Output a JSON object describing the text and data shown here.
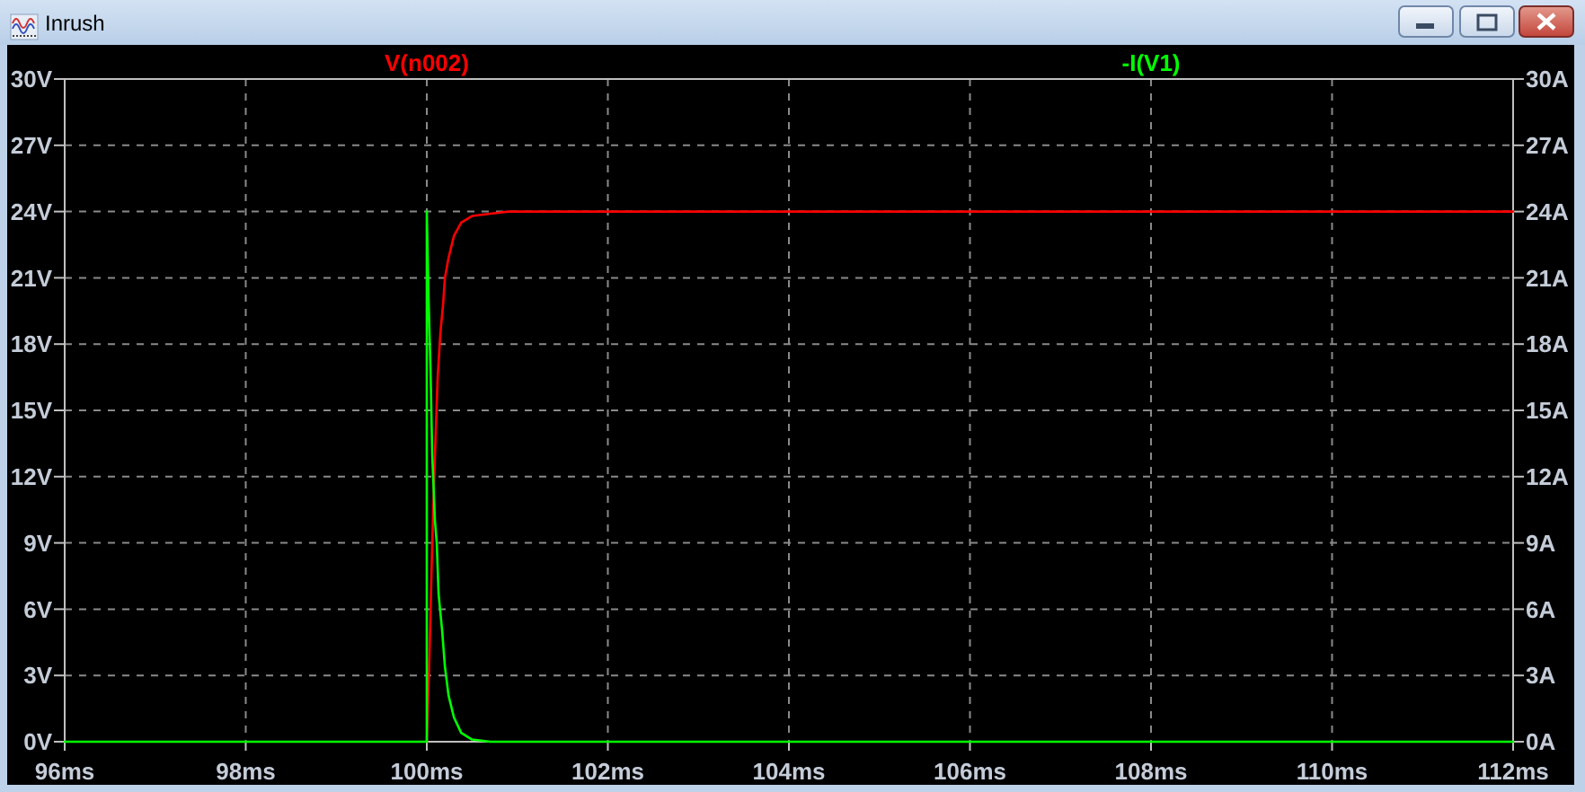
{
  "chart_data": {
    "type": "line",
    "title": "Inrush",
    "xlim": [
      96,
      112
    ],
    "xticks": [
      {
        "value": 96,
        "label": "96ms"
      },
      {
        "value": 98,
        "label": "98ms"
      },
      {
        "value": 100,
        "label": "100ms"
      },
      {
        "value": 102,
        "label": "102ms"
      },
      {
        "value": 104,
        "label": "104ms"
      },
      {
        "value": 106,
        "label": "106ms"
      },
      {
        "value": 108,
        "label": "108ms"
      },
      {
        "value": 110,
        "label": "110ms"
      },
      {
        "value": 112,
        "label": "112ms"
      }
    ],
    "ylim": [
      0,
      30
    ],
    "yticks": [
      {
        "value": 0,
        "label": "0V"
      },
      {
        "value": 3,
        "label": "3V"
      },
      {
        "value": 6,
        "label": "6V"
      },
      {
        "value": 9,
        "label": "9V"
      },
      {
        "value": 12,
        "label": "12V"
      },
      {
        "value": 15,
        "label": "15V"
      },
      {
        "value": 18,
        "label": "18V"
      },
      {
        "value": 21,
        "label": "21V"
      },
      {
        "value": 24,
        "label": "24V"
      },
      {
        "value": 27,
        "label": "27V"
      },
      {
        "value": 30,
        "label": "30V"
      }
    ],
    "y2lim": [
      0,
      30
    ],
    "y2ticks": [
      {
        "value": 0,
        "label": "0A"
      },
      {
        "value": 3,
        "label": "3A"
      },
      {
        "value": 6,
        "label": "6A"
      },
      {
        "value": 9,
        "label": "9A"
      },
      {
        "value": 12,
        "label": "12A"
      },
      {
        "value": 15,
        "label": "15A"
      },
      {
        "value": 18,
        "label": "18A"
      },
      {
        "value": 21,
        "label": "21A"
      },
      {
        "value": 24,
        "label": "24A"
      },
      {
        "value": 27,
        "label": "27A"
      },
      {
        "value": 30,
        "label": "30A"
      }
    ],
    "grid": true,
    "legend": "top",
    "series": [
      {
        "name": "V(n002)",
        "color": "#ff0000",
        "x": [
          100,
          100.03,
          100.06,
          100.09,
          100.12,
          100.15,
          100.18,
          100.2,
          100.24,
          100.3,
          100.38,
          100.5,
          100.7,
          100.9,
          112
        ],
        "values": [
          0,
          4,
          9,
          13,
          16.5,
          18.5,
          19.8,
          21,
          21.9,
          22.9,
          23.5,
          23.8,
          23.9,
          24,
          24
        ]
      },
      {
        "name": "-I(V1)",
        "color": "#00ff00",
        "axis": "y2",
        "x": [
          96,
          100,
          100,
          100.02,
          100.04,
          100.06,
          100.09,
          100.11,
          100.13,
          100.17,
          100.2,
          100.24,
          100.3,
          100.38,
          100.5,
          100.7,
          112
        ],
        "values": [
          0,
          0,
          24,
          20,
          17,
          13,
          10,
          9,
          6.7,
          5,
          3.4,
          2.1,
          1.1,
          0.4,
          0.1,
          0,
          0
        ]
      }
    ]
  }
}
